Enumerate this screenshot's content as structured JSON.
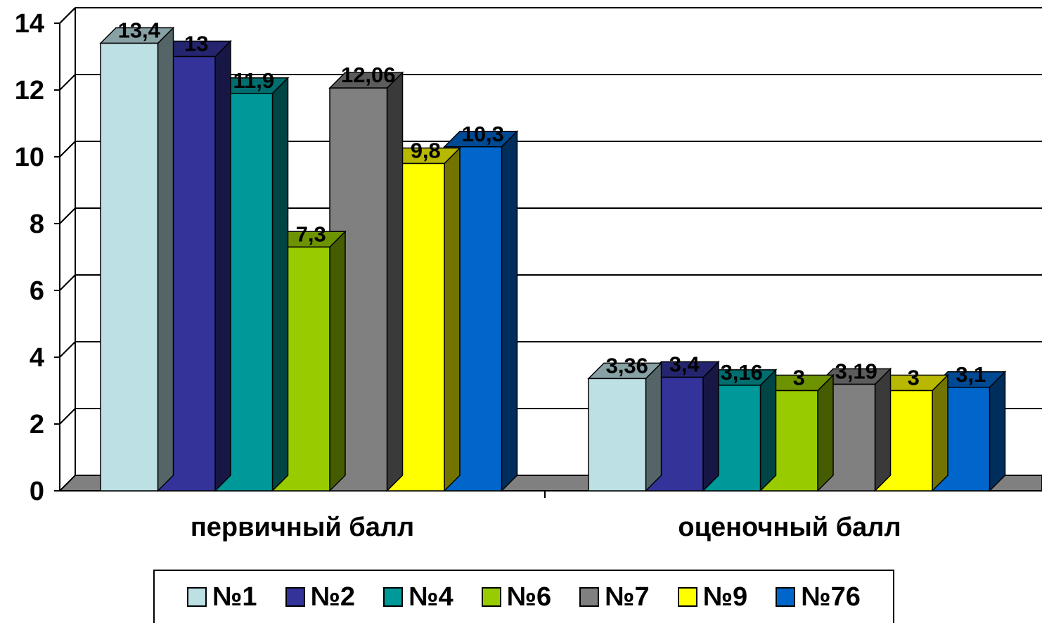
{
  "chart_data": {
    "type": "bar",
    "categories": [
      "первичный балл",
      "оценочный балл"
    ],
    "series": [
      {
        "name": "№1",
        "color": "#BCE0E4",
        "values": [
          13.4,
          3.36
        ],
        "labels": [
          "13,4",
          "3,36"
        ]
      },
      {
        "name": "№2",
        "color": "#33339A",
        "values": [
          13,
          3.4
        ],
        "labels": [
          "13",
          "3,4"
        ]
      },
      {
        "name": "№4",
        "color": "#009999",
        "values": [
          11.9,
          3.16
        ],
        "labels": [
          "11,9",
          "3,16"
        ]
      },
      {
        "name": "№6",
        "color": "#99CC00",
        "values": [
          7.3,
          3
        ],
        "labels": [
          "7,3",
          "3"
        ]
      },
      {
        "name": "№7",
        "color": "#808080",
        "values": [
          12.06,
          3.19
        ],
        "labels": [
          "12,06",
          "3,19"
        ]
      },
      {
        "name": "№9",
        "color": "#FFFF00",
        "values": [
          9.8,
          3
        ],
        "labels": [
          "9,8",
          "3"
        ]
      },
      {
        "name": "№76",
        "color": "#0066CC",
        "values": [
          10.3,
          3.1
        ],
        "labels": [
          "10,3",
          "3,1"
        ]
      }
    ],
    "ylim": [
      0,
      14
    ],
    "yticks": [
      "0",
      "2",
      "4",
      "6",
      "8",
      "10",
      "12",
      "14"
    ],
    "grid": true,
    "style": "3d-clustered-column",
    "legend_position": "bottom"
  }
}
